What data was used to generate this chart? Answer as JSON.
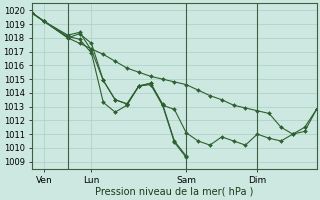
{
  "xlabel": "Pression niveau de la mer( hPa )",
  "bg_color": "#cde8e0",
  "grid_color": "#aacfc5",
  "line_color": "#2d6030",
  "vline_color": "#3a6040",
  "ylim": [
    1008.5,
    1020.5
  ],
  "yticks": [
    1009,
    1010,
    1011,
    1012,
    1013,
    1014,
    1015,
    1016,
    1017,
    1018,
    1019,
    1020
  ],
  "xlim": [
    0,
    24
  ],
  "xtick_positions": [
    1,
    5,
    13,
    19
  ],
  "xtick_labels": [
    "Ven",
    "Lun",
    "Sam",
    "Dim"
  ],
  "vline_positions": [
    3,
    13,
    19
  ],
  "series": [
    {
      "x": [
        0,
        1,
        3,
        4,
        5,
        6,
        7,
        8,
        9,
        10,
        11,
        12,
        13,
        14,
        15,
        16,
        17,
        18,
        19,
        20,
        21,
        22,
        23,
        24
      ],
      "y": [
        1019.8,
        1019.2,
        1018.0,
        1017.6,
        1017.2,
        1016.8,
        1016.3,
        1015.8,
        1015.5,
        1015.2,
        1015.0,
        1014.8,
        1014.6,
        1014.2,
        1013.8,
        1013.5,
        1013.1,
        1012.9,
        1012.7,
        1012.5,
        1011.5,
        1011.0,
        1011.5,
        1012.8
      ]
    },
    {
      "x": [
        0,
        1,
        3,
        4,
        5,
        6,
        7,
        8,
        9,
        10,
        11,
        12,
        13
      ],
      "y": [
        1019.8,
        1019.2,
        1018.0,
        1018.3,
        1017.6,
        1014.9,
        1013.5,
        1013.2,
        1014.5,
        1014.7,
        1013.2,
        1010.5,
        1009.4
      ]
    },
    {
      "x": [
        0,
        1,
        3,
        4,
        5,
        6,
        7,
        8,
        9,
        10,
        11,
        12,
        13,
        14,
        15,
        16,
        17,
        18,
        19,
        20,
        21,
        22,
        23,
        24
      ],
      "y": [
        1019.8,
        1019.2,
        1018.1,
        1017.9,
        1016.9,
        1013.3,
        1012.6,
        1013.1,
        1014.5,
        1014.6,
        1013.1,
        1012.8,
        1011.1,
        1010.5,
        1010.2,
        1010.8,
        1010.5,
        1010.2,
        1011.0,
        1010.7,
        1010.5,
        1011.0,
        1011.2,
        1012.8
      ]
    },
    {
      "x": [
        0,
        1,
        3,
        4,
        5,
        6,
        7,
        8,
        9,
        10,
        11,
        12,
        13
      ],
      "y": [
        1019.8,
        1019.2,
        1018.2,
        1018.4,
        1017.1,
        1014.9,
        1013.5,
        1013.2,
        1014.5,
        1014.7,
        1013.1,
        1010.4,
        1009.3
      ]
    }
  ]
}
